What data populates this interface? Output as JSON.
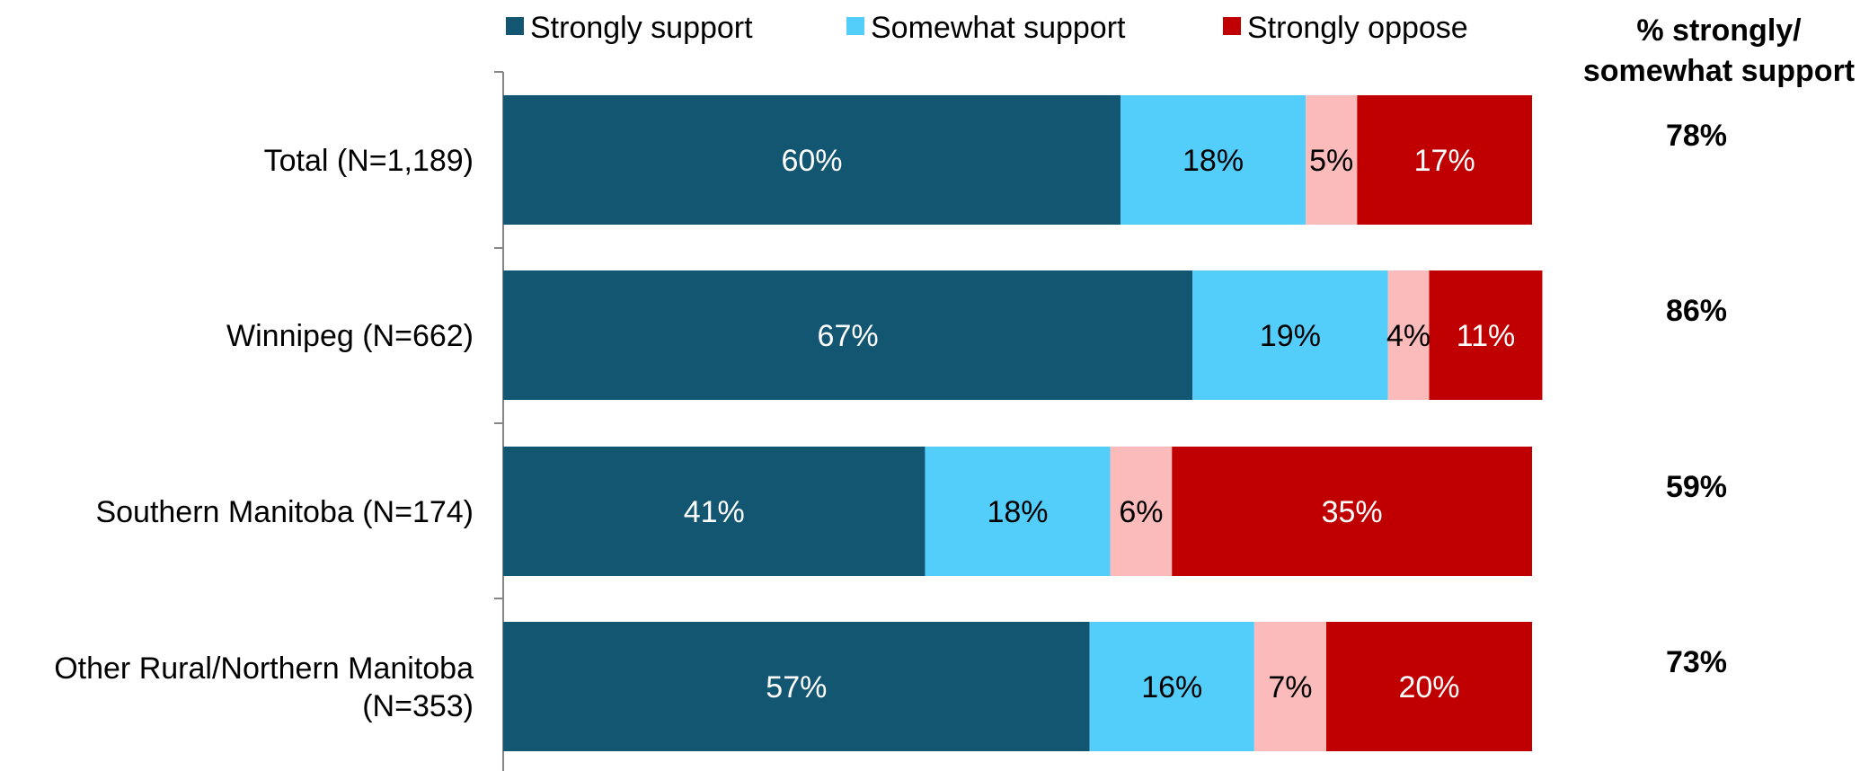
{
  "chart_data": {
    "type": "bar",
    "orientation": "horizontal",
    "stacked": true,
    "legend_position": "top",
    "grid": false,
    "xlim": [
      0,
      100
    ],
    "categories": [
      [
        "Total (N=1,189)"
      ],
      [
        "Winnipeg (N=662)"
      ],
      [
        "Southern Manitoba (N=174)"
      ],
      [
        "Other Rural/Northern Manitoba",
        "(N=353)"
      ]
    ],
    "series": [
      {
        "name": "Strongly support",
        "color": "#135672",
        "label_color": "#ffffff",
        "values": [
          60,
          67,
          41,
          57
        ]
      },
      {
        "name": "Somewhat support",
        "color": "#53CDFA",
        "label_color": "#000000",
        "values": [
          18,
          19,
          18,
          16
        ]
      },
      {
        "name": "",
        "color": "#FBBBBB",
        "label_color": "#000000",
        "values": [
          5,
          4,
          6,
          7
        ]
      },
      {
        "name": "Strongly oppose",
        "color": "#C00000",
        "label_color": "#ffffff",
        "values": [
          17,
          11,
          35,
          20
        ]
      }
    ],
    "side_column": {
      "header": [
        "% strongly/",
        "somewhat support"
      ],
      "values": [
        "78%",
        "86%",
        "59%",
        "73%"
      ]
    }
  }
}
